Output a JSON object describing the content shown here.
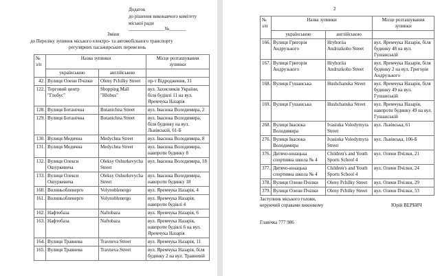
{
  "page1": {
    "header": {
      "line1": "Додаток",
      "line2": "до рішення виконавчого комітету",
      "line3": "міської ради",
      "line4": "_______________№_______"
    },
    "title": "Зміни",
    "subtitle1": "до Переліку зупинок міського електро- та автомобільного транспорту",
    "subtitle2": "регулярних пасажирських перевезень",
    "table": {
      "col_num": "№ з/п",
      "col_name": "Назва зупинки",
      "col_loc": "Місце розташування зупинки",
      "col_ukr": "українською",
      "col_eng": "англійською",
      "rows": [
        {
          "n": "42.",
          "ukr": "Вулиця Олени Пчілки",
          "eng": "Oleny Pchilky Street",
          "loc": "пр-т Відродження, 31"
        },
        {
          "n": "122.",
          "ukr": "Торговий центр \"Глобус\"",
          "eng": "Shopping Mall \"Hlobus\"",
          "loc": "вул. Захисників України, біля будівлі 11 на вул. Яремчука Назарія"
        },
        {
          "n": "128.",
          "ukr": "Вулиця Ботанічна",
          "eng": "Botanichna Street",
          "loc": "вул. Івасюка Володимира, 2"
        },
        {
          "n": "129.",
          "ukr": "Вулиця Ботанічна",
          "eng": "Botanichna Street",
          "loc": "вул. Івасюка Володимира, біля будинку на вул. Львівській, 61-Б"
        },
        {
          "n": "130.",
          "ukr": "Вулиця Медична",
          "eng": "Medychna Street",
          "loc": "вул. Івасюка Володимира, 8"
        },
        {
          "n": "131.",
          "ukr": "Вулиця Медична",
          "eng": "Medychna Street",
          "loc": "вул. Івасюка Володимира, навпроти будинку 8"
        },
        {
          "n": "132.",
          "ukr": "Вулиця Олекси Ошуркевича",
          "eng": "Oleksy Oshurkevycha Street",
          "loc": "вул. Івасюка Володимира, 18"
        },
        {
          "n": "133.",
          "ukr": "Вулиця Олекси Ошуркевича",
          "eng": "Oleksy Oshurkevycha Street",
          "loc": "вул. Івасюка Володимира, навпроти будинку 18"
        },
        {
          "n": "160.",
          "ukr": "Волиньобленерго",
          "eng": "Volynoblenergo",
          "loc": "вул. Яремчука Назарія, 4"
        },
        {
          "n": "161.",
          "ukr": "Волиньобленерго",
          "eng": "Volynoblenergo",
          "loc": "вул. Яремчука Назарія, навпроти будівлі 4"
        },
        {
          "n": "162.",
          "ukr": "Нафтобаза",
          "eng": "Naftobaza",
          "loc": "вул. Яремчука Назарія, 6"
        },
        {
          "n": "163.",
          "ukr": "Нафтобаза",
          "eng": "Naftobaza",
          "loc": "вул. Яремчука Назарія, навпроти будівлі 6 на вул. Яремчука Назарія"
        },
        {
          "n": "164.",
          "ukr": "Вулиця Травнева",
          "eng": "Travneva Street",
          "loc": "вул. Яремчука Назарія, 11"
        },
        {
          "n": "165.",
          "ukr": "Вулиця Травнева",
          "eng": "Travneva Street",
          "loc": "вул. Яремчука Назарія, біля будинку 2 на вул. Травневій"
        }
      ]
    }
  },
  "page2": {
    "page_number": "2",
    "table": {
      "col_num": "№ з/п",
      "col_name": "Назва зупинки",
      "col_loc": "Місце розташування зупинки",
      "col_ukr": "українською",
      "col_eng": "англійською",
      "rows": [
        {
          "n": "166.",
          "ukr": "Вулиця Григорія Андрузького",
          "eng": "Hryhoriia Andruzkoho Street",
          "loc": "вул. Яремчука Назарія, біля будинку 48 на вул. Гушанській"
        },
        {
          "n": "167.",
          "ukr": "Вулиця Григорія Андрузького",
          "eng": "Hryhoriia Andruzkoho Street",
          "loc": "вул. Яремчука Назарія, біля будинку 2 на вул. Григорія Андрузького"
        },
        {
          "n": "168.",
          "ukr": "Вулиця Гушанська",
          "eng": "Hushchanska Street",
          "loc": "вул. Яремчука Назарія, біля будинку 49 на вул. Гушанській"
        },
        {
          "n": "169.",
          "ukr": "Вулиця Гушанська",
          "eng": "Hushchanska Street",
          "loc": "вул. Яремчука Назарія, навпроти будинку 49 на вул. Гушанській"
        },
        {
          "n": "268.",
          "ukr": "Вулиця Івасюка Володимира",
          "eng": "Ivasiuka Volodymyra Street",
          "loc": "вул. Львівська, 61"
        },
        {
          "n": "276.",
          "ukr": "Вулиця Івасюка Володимира",
          "eng": "Ivasiuka Volodymyra Street",
          "loc": "вул. Львівська, 106-Б"
        },
        {
          "n": "376.",
          "ukr": "Дитячо-юнацька спортивна школа № 4",
          "eng": "Children's and Youth Sports School 4",
          "loc": "вул. Олени Пчілки, 21"
        },
        {
          "n": "377.",
          "ukr": "Дитячо-юнацька спортивна школа № 4",
          "eng": "Children's and Youth Sports School 4",
          "loc": "вул. Олени Пчілки, 24"
        },
        {
          "n": "378.",
          "ukr": "Вулиця Олени Пчілки",
          "eng": "Oleny Pchilky Street",
          "loc": "вул. Олени Пчілки, 29"
        },
        {
          "n": "379.",
          "ukr": "Вулиця Олени Пчілки",
          "eng": "Oleny Pchilky Street",
          "loc": "вул. Олени Пчілки, 53"
        }
      ]
    },
    "signature": {
      "line1": "Заступник міського голови,",
      "line2": "керуючий справами виконкому",
      "name": "Юрій ВЕРБИЧ"
    },
    "footer": "Главічка 777 986"
  }
}
